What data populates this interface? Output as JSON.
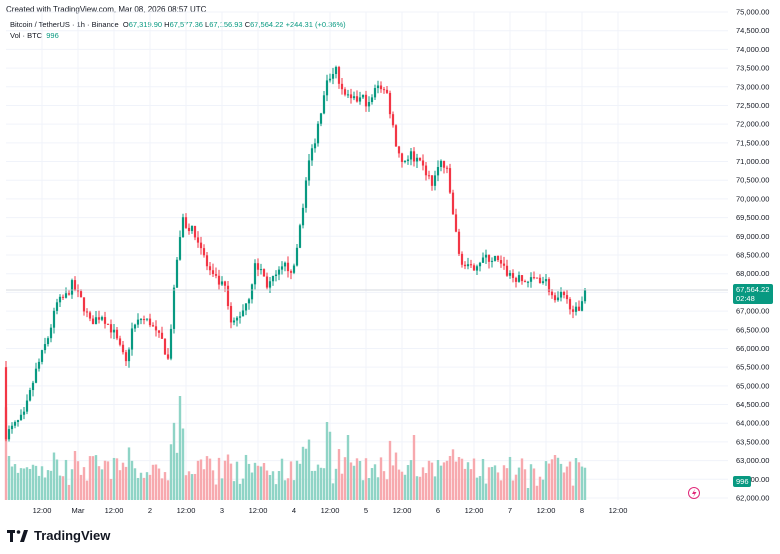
{
  "header": {
    "created_line": "Created with TradingView.com, Mar 08, 2026 08:57 UTC"
  },
  "legend": {
    "symbol": "Bitcoin / TetherUS · 1h · Binance",
    "open_label": "O",
    "open": "67,319.90",
    "high_label": "H",
    "high": "67,577.36",
    "low_label": "L",
    "low": "67,156.93",
    "close_label": "C",
    "close": "67,564.22",
    "change": "+244.31 (+0.36%)",
    "vol_label": "Vol · BTC",
    "vol_value": "996"
  },
  "price_tag": {
    "price": "67,564.22",
    "countdown": "02:48"
  },
  "volume_tag": "996",
  "brand": {
    "name": "TradingView"
  },
  "colors": {
    "up": "#089981",
    "down": "#f23645",
    "vol_up": "#8fd4c6",
    "vol_down": "#f7a9ae",
    "grid": "#f0f3fa"
  },
  "chart_data": {
    "type": "candlestick",
    "price_axis": {
      "min": 62000,
      "max": 75000,
      "step": 500,
      "labels": [
        "75,000.00",
        "74,500.00",
        "74,000.00",
        "73,500.00",
        "73,000.00",
        "72,500.00",
        "72,000.00",
        "71,500.00",
        "71,000.00",
        "70,500.00",
        "70,000.00",
        "69,500.00",
        "69,000.00",
        "68,500.00",
        "68,000.00",
        "67,500.00",
        "67,000.00",
        "66,500.00",
        "66,000.00",
        "65,500.00",
        "65,000.00",
        "64,500.00",
        "64,000.00",
        "63,500.00",
        "63,000.00",
        "62,500.00",
        "62,000.00"
      ]
    },
    "time_axis": {
      "labels": [
        "12:00",
        "Mar",
        "12:00",
        "2",
        "12:00",
        "3",
        "12:00",
        "4",
        "12:00",
        "5",
        "12:00",
        "6",
        "12:00",
        "7",
        "12:00",
        "8",
        "12:00"
      ],
      "hours": [
        12,
        24,
        36,
        48,
        60,
        72,
        84,
        96,
        108,
        120,
        132,
        144,
        156,
        168,
        180,
        192,
        204
      ]
    },
    "close_path": [
      [
        0,
        63700
      ],
      [
        6,
        64200
      ],
      [
        10,
        65400
      ],
      [
        14,
        66300
      ],
      [
        17,
        67200
      ],
      [
        20,
        67400
      ],
      [
        22,
        67700
      ],
      [
        25,
        67300
      ],
      [
        28,
        66700
      ],
      [
        32,
        66900
      ],
      [
        36,
        66400
      ],
      [
        40,
        65600
      ],
      [
        42,
        66500
      ],
      [
        45,
        66800
      ],
      [
        48,
        66700
      ],
      [
        50,
        66400
      ],
      [
        52,
        66200
      ],
      [
        54,
        65700
      ],
      [
        57,
        68400
      ],
      [
        59,
        69400
      ],
      [
        61,
        69200
      ],
      [
        63,
        69100
      ],
      [
        65,
        68700
      ],
      [
        67,
        68200
      ],
      [
        69,
        67900
      ],
      [
        73,
        67600
      ],
      [
        75,
        66600
      ],
      [
        78,
        66900
      ],
      [
        81,
        67400
      ],
      [
        83,
        68200
      ],
      [
        85,
        68100
      ],
      [
        87,
        67700
      ],
      [
        90,
        67900
      ],
      [
        93,
        68200
      ],
      [
        96,
        68100
      ],
      [
        98,
        69300
      ],
      [
        101,
        71000
      ],
      [
        103,
        71600
      ],
      [
        105,
        72400
      ],
      [
        107,
        73300
      ],
      [
        110,
        73400
      ],
      [
        113,
        72800
      ],
      [
        115,
        72600
      ],
      [
        119,
        72700
      ],
      [
        121,
        72500
      ],
      [
        124,
        73100
      ],
      [
        127,
        72800
      ],
      [
        130,
        71500
      ],
      [
        132,
        71000
      ],
      [
        135,
        71200
      ],
      [
        138,
        70900
      ],
      [
        140,
        70700
      ],
      [
        142,
        70400
      ],
      [
        145,
        71000
      ],
      [
        147,
        70700
      ],
      [
        149,
        69600
      ],
      [
        151,
        68500
      ],
      [
        153,
        68200
      ],
      [
        155,
        68100
      ],
      [
        157,
        68300
      ],
      [
        159,
        68400
      ],
      [
        163,
        68400
      ],
      [
        166,
        68100
      ],
      [
        169,
        67900
      ],
      [
        172,
        67800
      ],
      [
        175,
        67800
      ],
      [
        177,
        67900
      ],
      [
        180,
        67800
      ],
      [
        183,
        67200
      ],
      [
        185,
        67400
      ],
      [
        189,
        67100
      ],
      [
        191,
        66900
      ],
      [
        192,
        67300
      ],
      [
        193,
        67564
      ]
    ],
    "volume_scale_max": 4000,
    "volume_spikes": [
      [
        58,
        3200
      ],
      [
        59,
        2200
      ],
      [
        107,
        2400
      ],
      [
        108,
        2100
      ],
      [
        114,
        2000
      ],
      [
        136,
        2000
      ]
    ]
  }
}
